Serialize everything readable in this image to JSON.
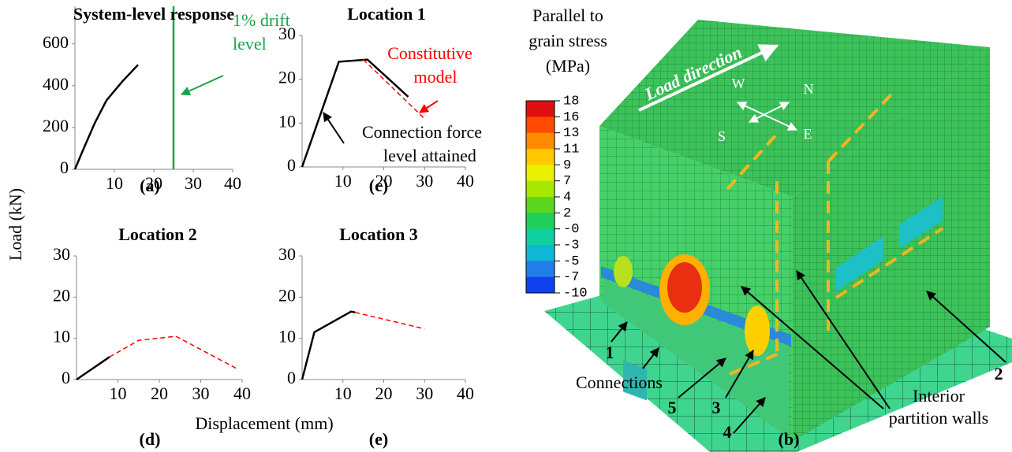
{
  "chart_data": [
    {
      "type": "line",
      "title": "System-level response",
      "panel_label": "(a)",
      "xlim": [
        0,
        40
      ],
      "xticks": [
        10,
        20,
        30,
        40
      ],
      "ylim": [
        0,
        780
      ],
      "yticks": [
        0,
        200,
        400,
        600
      ],
      "series": [
        {
          "color": "#000000",
          "x": [
            0,
            2,
            5,
            8,
            12,
            16
          ],
          "values": [
            0,
            90,
            220,
            330,
            420,
            500
          ]
        },
        {
          "color": "#1aa34a",
          "x": [
            25,
            25
          ],
          "values": [
            0,
            780
          ]
        }
      ],
      "annotations": [
        "1% drift",
        "level"
      ]
    },
    {
      "type": "line",
      "title": "Location 1",
      "panel_label": "(c)",
      "xlim": [
        0,
        40
      ],
      "xticks": [
        10,
        20,
        30,
        40
      ],
      "ylim": [
        0,
        30
      ],
      "yticks": [
        0,
        10,
        20,
        30
      ],
      "series": [
        {
          "color": "#000000",
          "x": [
            0,
            9,
            16,
            26
          ],
          "values": [
            0,
            24,
            24.5,
            16
          ]
        },
        {
          "color": "#ff0000",
          "dashed": true,
          "x": [
            15,
            30
          ],
          "values": [
            24.5,
            11
          ]
        }
      ],
      "annotations": [
        "Constitutive",
        "model",
        "Connection force",
        "level attained"
      ]
    },
    {
      "type": "line",
      "title": "Location 2",
      "panel_label": "(d)",
      "xlim": [
        0,
        40
      ],
      "xticks": [
        10,
        20,
        30,
        40
      ],
      "ylim": [
        0,
        30
      ],
      "yticks": [
        0,
        10,
        20,
        30
      ],
      "series": [
        {
          "color": "#000000",
          "x": [
            0,
            8
          ],
          "values": [
            0,
            5.5
          ]
        },
        {
          "color": "#ff0000",
          "dashed": true,
          "x": [
            8,
            15,
            24,
            39
          ],
          "values": [
            5.5,
            9.5,
            10.5,
            2.5
          ]
        }
      ]
    },
    {
      "type": "line",
      "title": "Location 3",
      "panel_label": "(e)",
      "xlim": [
        0,
        40
      ],
      "xticks": [
        10,
        20,
        30,
        40
      ],
      "ylim": [
        0,
        30
      ],
      "yticks": [
        0,
        10,
        20,
        30
      ],
      "series": [
        {
          "color": "#000000",
          "x": [
            0,
            3,
            12,
            13
          ],
          "values": [
            0,
            11.5,
            16.5,
            16.3
          ]
        },
        {
          "color": "#ff0000",
          "dashed": true,
          "x": [
            13,
            30
          ],
          "values": [
            16.3,
            12.3
          ]
        }
      ]
    }
  ],
  "y_label": "Load (kN)",
  "x_label": "Displacement (mm)",
  "model_panel": {
    "colorbar": {
      "title": [
        "Parallel to",
        "grain stress",
        "(MPa)"
      ],
      "labels": [
        "18",
        "16",
        "13",
        "11",
        "9",
        "7",
        "4",
        "2",
        "-0",
        "-3",
        "-5",
        "-7",
        "-10"
      ],
      "colors": [
        "#e01010",
        "#ff4a00",
        "#ff8c00",
        "#ffc800",
        "#e8f000",
        "#a8e800",
        "#5ad820",
        "#20d05a",
        "#10d0a0",
        "#10b8d8",
        "#2080e8",
        "#1040f0"
      ]
    },
    "load_direction": "Load direction",
    "compass": [
      "W",
      "N",
      "S",
      "E"
    ],
    "markers": [
      "1",
      "2",
      "3",
      "4",
      "5"
    ],
    "connections": "Connections",
    "walls": [
      "Interior",
      "partition walls"
    ],
    "panel_label": "(b)"
  }
}
